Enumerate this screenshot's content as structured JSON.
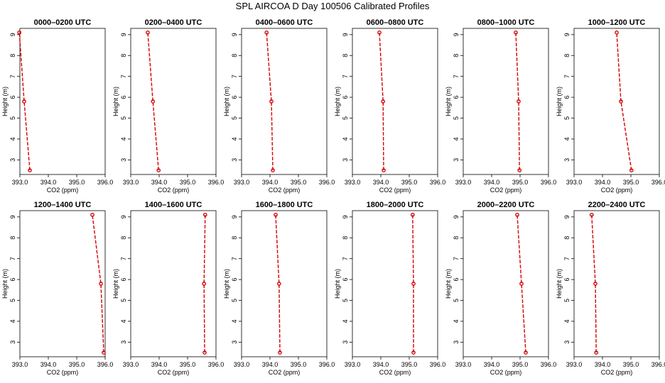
{
  "title": "SPL AIRCOA D  Day 100506  Calibrated Profiles",
  "colors": {
    "line": "#d40000",
    "axes": "#000000",
    "background": "#ffffff"
  },
  "chart_data": [
    {
      "type": "line",
      "title": "0000–0200 UTC",
      "xlabel": "CO2 (ppm)",
      "ylabel": "Height (m)",
      "xlim": [
        393.0,
        396.0
      ],
      "ylim": [
        2.3,
        9.3
      ],
      "xticks": [
        "393.0",
        "394.0",
        "395.0",
        "396.0"
      ],
      "yticks": [
        "3",
        "4",
        "5",
        "6",
        "7",
        "8",
        "9"
      ],
      "x": [
        393.35,
        393.15,
        392.98
      ],
      "y": [
        2.5,
        5.8,
        9.1
      ]
    },
    {
      "type": "line",
      "title": "0200–0400 UTC",
      "xlabel": "CO2 (ppm)",
      "ylabel": "Height (m)",
      "xlim": [
        393.0,
        396.0
      ],
      "ylim": [
        2.3,
        9.3
      ],
      "xticks": [
        "393.0",
        "394.0",
        "395.0",
        "396.0"
      ],
      "yticks": [
        "3",
        "4",
        "5",
        "6",
        "7",
        "8",
        "9"
      ],
      "x": [
        393.98,
        393.78,
        393.6
      ],
      "y": [
        2.5,
        5.8,
        9.1
      ]
    },
    {
      "type": "line",
      "title": "0400–0600 UTC",
      "xlabel": "CO2 (ppm)",
      "ylabel": "Height (m)",
      "xlim": [
        393.0,
        396.0
      ],
      "ylim": [
        2.3,
        9.3
      ],
      "xticks": [
        "393.0",
        "394.0",
        "395.0",
        "396.0"
      ],
      "yticks": [
        "3",
        "4",
        "5",
        "6",
        "7",
        "8",
        "9"
      ],
      "x": [
        394.1,
        394.05,
        393.88
      ],
      "y": [
        2.5,
        5.8,
        9.1
      ]
    },
    {
      "type": "line",
      "title": "0600–0800 UTC",
      "xlabel": "CO2 (ppm)",
      "ylabel": "Height (m)",
      "xlim": [
        393.0,
        396.0
      ],
      "ylim": [
        2.3,
        9.3
      ],
      "xticks": [
        "393.0",
        "394.0",
        "395.0",
        "396.0"
      ],
      "yticks": [
        "3",
        "4",
        "5",
        "6",
        "7",
        "8",
        "9"
      ],
      "x": [
        394.1,
        394.08,
        393.95
      ],
      "y": [
        2.5,
        5.8,
        9.1
      ]
    },
    {
      "type": "line",
      "title": "0800–1000 UTC",
      "xlabel": "CO2 (ppm)",
      "ylabel": "Height (m)",
      "xlim": [
        393.0,
        396.0
      ],
      "ylim": [
        2.3,
        9.3
      ],
      "xticks": [
        "393.0",
        "394.0",
        "395.0",
        "396.0"
      ],
      "yticks": [
        "3",
        "4",
        "5",
        "6",
        "7",
        "8",
        "9"
      ],
      "x": [
        394.98,
        394.95,
        394.85
      ],
      "y": [
        2.5,
        5.8,
        9.1
      ]
    },
    {
      "type": "line",
      "title": "1000–1200 UTC",
      "xlabel": "CO2 (ppm)",
      "ylabel": "Height (m)",
      "xlim": [
        393.0,
        396.0
      ],
      "ylim": [
        2.3,
        9.3
      ],
      "xticks": [
        "393.0",
        "394.0",
        "395.0",
        "396.0"
      ],
      "yticks": [
        "3",
        "4",
        "5",
        "6",
        "7",
        "8",
        "9"
      ],
      "x": [
        395.02,
        394.65,
        394.5
      ],
      "y": [
        2.5,
        5.8,
        9.1
      ]
    },
    {
      "type": "line",
      "title": "1200–1400 UTC",
      "xlabel": "CO2 (ppm)",
      "ylabel": "Height (m)",
      "xlim": [
        393.0,
        396.0
      ],
      "ylim": [
        2.3,
        9.3
      ],
      "xticks": [
        "393.0",
        "394.0",
        "395.0",
        "396.0"
      ],
      "yticks": [
        "3",
        "4",
        "5",
        "6",
        "7",
        "8",
        "9"
      ],
      "x": [
        395.95,
        395.85,
        395.55
      ],
      "y": [
        2.5,
        5.8,
        9.1
      ]
    },
    {
      "type": "line",
      "title": "1400–1600 UTC",
      "xlabel": "CO2 (ppm)",
      "ylabel": "Height (m)",
      "xlim": [
        393.0,
        396.0
      ],
      "ylim": [
        2.3,
        9.3
      ],
      "xticks": [
        "393.0",
        "394.0",
        "395.0",
        "396.0"
      ],
      "yticks": [
        "3",
        "4",
        "5",
        "6",
        "7",
        "8",
        "9"
      ],
      "x": [
        395.6,
        395.58,
        395.62
      ],
      "y": [
        2.5,
        5.8,
        9.1
      ]
    },
    {
      "type": "line",
      "title": "1600–1800 UTC",
      "xlabel": "CO2 (ppm)",
      "ylabel": "Height (m)",
      "xlim": [
        393.0,
        396.0
      ],
      "ylim": [
        2.3,
        9.3
      ],
      "xticks": [
        "393.0",
        "394.0",
        "395.0",
        "396.0"
      ],
      "yticks": [
        "3",
        "4",
        "5",
        "6",
        "7",
        "8",
        "9"
      ],
      "x": [
        394.35,
        394.32,
        394.2
      ],
      "y": [
        2.5,
        5.8,
        9.1
      ]
    },
    {
      "type": "line",
      "title": "1800–2000 UTC",
      "xlabel": "CO2 (ppm)",
      "ylabel": "Height (m)",
      "xlim": [
        393.0,
        396.0
      ],
      "ylim": [
        2.3,
        9.3
      ],
      "xticks": [
        "393.0",
        "394.0",
        "395.0",
        "396.0"
      ],
      "yticks": [
        "3",
        "4",
        "5",
        "6",
        "7",
        "8",
        "9"
      ],
      "x": [
        395.15,
        395.15,
        395.12
      ],
      "y": [
        2.5,
        5.8,
        9.1
      ]
    },
    {
      "type": "line",
      "title": "2000–2200 UTC",
      "xlabel": "CO2 (ppm)",
      "ylabel": "Height (m)",
      "xlim": [
        393.0,
        396.0
      ],
      "ylim": [
        2.3,
        9.3
      ],
      "xticks": [
        "393.0",
        "394.0",
        "395.0",
        "396.0"
      ],
      "yticks": [
        "3",
        "4",
        "5",
        "6",
        "7",
        "8",
        "9"
      ],
      "x": [
        395.2,
        395.05,
        394.9
      ],
      "y": [
        2.5,
        5.8,
        9.1
      ]
    },
    {
      "type": "line",
      "title": "2200–2400 UTC",
      "xlabel": "CO2 (ppm)",
      "ylabel": "Height (m)",
      "xlim": [
        393.0,
        396.0
      ],
      "ylim": [
        2.3,
        9.3
      ],
      "xticks": [
        "393.0",
        "394.0",
        "395.0",
        "396.0"
      ],
      "yticks": [
        "3",
        "4",
        "5",
        "6",
        "7",
        "8",
        "9"
      ],
      "x": [
        393.78,
        393.75,
        393.62
      ],
      "y": [
        2.5,
        5.8,
        9.1
      ]
    }
  ]
}
